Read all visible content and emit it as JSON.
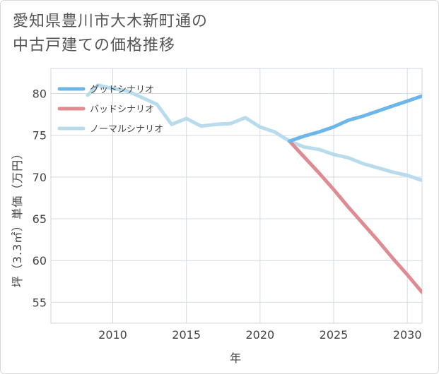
{
  "title_line1": "愛知県豊川市大木新町通の",
  "title_line2": "中古戸建ての価格推移",
  "chart_data": {
    "type": "line",
    "xlabel": "年",
    "ylabel": "坪（3.3㎡）単価（万円）",
    "xlim": [
      2005.8,
      2031
    ],
    "ylim": [
      52.5,
      83
    ],
    "x_ticks": [
      2010,
      2015,
      2020,
      2025,
      2030
    ],
    "y_ticks": [
      55,
      60,
      65,
      70,
      75,
      80
    ],
    "grid": true,
    "legend_position": "top-left",
    "series": [
      {
        "name": "グッドシナリオ",
        "color": "#6cb6ea",
        "width": 5,
        "x": [
          2022,
          2023,
          2024,
          2025,
          2026,
          2027,
          2028,
          2029,
          2030,
          2031
        ],
        "y": [
          74.3,
          74.9,
          75.4,
          76.0,
          76.8,
          77.3,
          77.9,
          78.5,
          79.1,
          79.7
        ]
      },
      {
        "name": "バッドシナリオ",
        "color": "#de8c91",
        "width": 5,
        "x": [
          2022,
          2023,
          2024,
          2025,
          2026,
          2027,
          2028,
          2029,
          2030,
          2031
        ],
        "y": [
          74.3,
          72.4,
          70.5,
          68.5,
          66.4,
          64.4,
          62.4,
          60.3,
          58.3,
          56.2
        ]
      },
      {
        "name": "ノーマルシナリオ",
        "color": "#b9dcec",
        "width": 5,
        "x": [
          2008.3,
          2009,
          2010,
          2011,
          2012,
          2013,
          2014,
          2015,
          2016,
          2017,
          2018,
          2019,
          2020,
          2021,
          2022,
          2023,
          2024,
          2025,
          2026,
          2027,
          2028,
          2029,
          2030,
          2031
        ],
        "y": [
          79.8,
          81.0,
          80.6,
          80.3,
          79.5,
          78.7,
          76.3,
          77.0,
          76.1,
          76.3,
          76.4,
          77.1,
          76.0,
          75.4,
          74.3,
          73.6,
          73.3,
          72.7,
          72.3,
          71.6,
          71.1,
          70.6,
          70.2,
          69.6
        ]
      }
    ]
  }
}
